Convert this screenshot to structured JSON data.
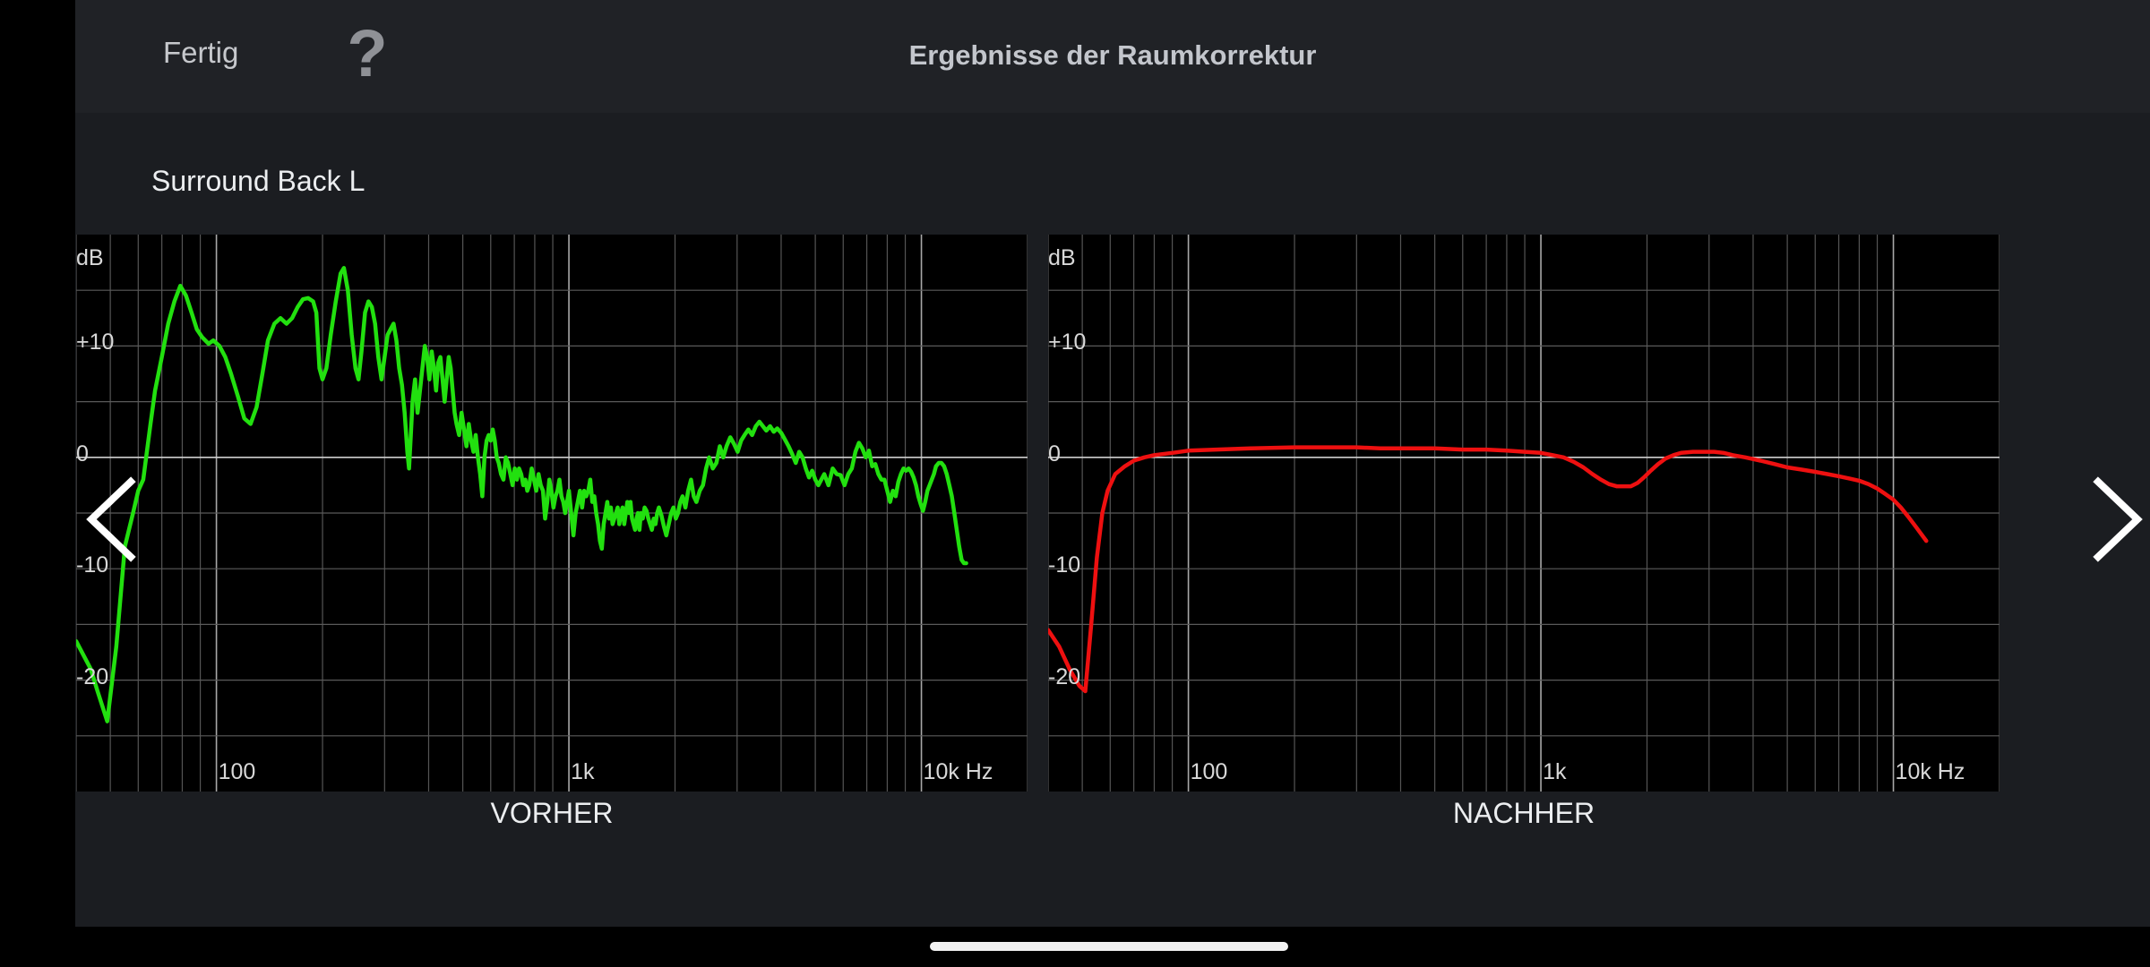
{
  "header": {
    "done_label": "Fertig",
    "help_label": "?",
    "title": "Ergebnisse der Raumkorrektur"
  },
  "speaker": "Surround Back L",
  "axis": {
    "unit_label": "dB",
    "y_ticks": [
      "+10",
      "0",
      "-10",
      "-20"
    ],
    "x_ticks": [
      "100",
      "1k",
      "10k Hz"
    ]
  },
  "colors": {
    "before_curve": "#22e00f",
    "after_curve": "#ee1010",
    "app_background": "#1b1d21",
    "header_background": "#202226"
  },
  "icons": {
    "prev": "chevron-left-icon",
    "next": "chevron-right-icon"
  },
  "chart_data": [
    {
      "type": "line",
      "title": "VORHER",
      "ylabel": "dB",
      "x_scale": "log",
      "xlim": [
        40,
        20000
      ],
      "ylim": [
        -30,
        20
      ],
      "grid": true,
      "points": [
        [
          40,
          -16.5
        ],
        [
          44,
          -19
        ],
        [
          46,
          -21
        ],
        [
          49,
          -23.7
        ],
        [
          52,
          -17
        ],
        [
          55,
          -8
        ],
        [
          58,
          -5
        ],
        [
          60,
          -3
        ],
        [
          62,
          -2
        ],
        [
          65,
          3
        ],
        [
          67,
          6
        ],
        [
          70,
          9
        ],
        [
          73,
          12
        ],
        [
          76,
          14
        ],
        [
          79,
          15.4
        ],
        [
          82,
          14.5
        ],
        [
          85,
          13
        ],
        [
          88,
          11.5
        ],
        [
          91,
          10.8
        ],
        [
          95,
          10.2
        ],
        [
          98,
          10.5
        ],
        [
          102,
          10
        ],
        [
          106,
          9
        ],
        [
          110,
          7.5
        ],
        [
          115,
          5.5
        ],
        [
          120,
          3.5
        ],
        [
          125,
          3
        ],
        [
          130,
          4.5
        ],
        [
          135,
          7.5
        ],
        [
          140,
          10.5
        ],
        [
          146,
          12
        ],
        [
          152,
          12.5
        ],
        [
          158,
          12
        ],
        [
          164,
          12.5
        ],
        [
          170,
          13.5
        ],
        [
          176,
          14.2
        ],
        [
          182,
          14.3
        ],
        [
          188,
          14
        ],
        [
          192,
          13
        ],
        [
          196,
          8
        ],
        [
          200,
          7
        ],
        [
          205,
          8
        ],
        [
          211,
          11
        ],
        [
          218,
          14
        ],
        [
          225,
          16.5
        ],
        [
          230,
          17
        ],
        [
          236,
          15
        ],
        [
          242,
          11
        ],
        [
          248,
          8
        ],
        [
          253,
          7
        ],
        [
          258,
          9.5
        ],
        [
          264,
          13
        ],
        [
          270,
          14
        ],
        [
          276,
          13.5
        ],
        [
          282,
          12
        ],
        [
          288,
          9
        ],
        [
          294,
          7
        ],
        [
          300,
          9
        ],
        [
          306,
          11
        ],
        [
          312,
          11.5
        ],
        [
          318,
          12
        ],
        [
          324,
          10.5
        ],
        [
          330,
          8
        ],
        [
          336,
          6.5
        ],
        [
          342,
          4
        ],
        [
          348,
          0.5
        ],
        [
          352,
          -1
        ],
        [
          356,
          2
        ],
        [
          360,
          5
        ],
        [
          366,
          7
        ],
        [
          372,
          4
        ],
        [
          378,
          6
        ],
        [
          384,
          8
        ],
        [
          390,
          10
        ],
        [
          396,
          9
        ],
        [
          402,
          7
        ],
        [
          408,
          9.5
        ],
        [
          414,
          8
        ],
        [
          420,
          6
        ],
        [
          426,
          8.5
        ],
        [
          432,
          9
        ],
        [
          438,
          7
        ],
        [
          444,
          5
        ],
        [
          450,
          7
        ],
        [
          456,
          9
        ],
        [
          462,
          8
        ],
        [
          468,
          6
        ],
        [
          474,
          4
        ],
        [
          480,
          3
        ],
        [
          488,
          2
        ],
        [
          496,
          4
        ],
        [
          504,
          2.5
        ],
        [
          512,
          1
        ],
        [
          520,
          3
        ],
        [
          528,
          1.5
        ],
        [
          536,
          0.5
        ],
        [
          544,
          2
        ],
        [
          552,
          0
        ],
        [
          560,
          -1.5
        ],
        [
          568,
          -3.5
        ],
        [
          576,
          0
        ],
        [
          584,
          1.5
        ],
        [
          592,
          2
        ],
        [
          600,
          1.5
        ],
        [
          608,
          2.5
        ],
        [
          616,
          1.5
        ],
        [
          624,
          0
        ],
        [
          632,
          -0.5
        ],
        [
          642,
          -1.5
        ],
        [
          652,
          -2
        ],
        [
          662,
          0
        ],
        [
          672,
          -0.5
        ],
        [
          682,
          -1.5
        ],
        [
          692,
          -2.5
        ],
        [
          702,
          -1
        ],
        [
          712,
          -2
        ],
        [
          722,
          -1
        ],
        [
          732,
          -1.5
        ],
        [
          742,
          -2.5
        ],
        [
          752,
          -2
        ],
        [
          762,
          -3
        ],
        [
          772,
          -2.5
        ],
        [
          784,
          -1
        ],
        [
          796,
          -2
        ],
        [
          808,
          -3
        ],
        [
          820,
          -1.5
        ],
        [
          832,
          -2.5
        ],
        [
          844,
          -3
        ],
        [
          856,
          -5.5
        ],
        [
          868,
          -4
        ],
        [
          880,
          -2
        ],
        [
          892,
          -3
        ],
        [
          904,
          -4.5
        ],
        [
          916,
          -3.5
        ],
        [
          928,
          -3
        ],
        [
          940,
          -2
        ],
        [
          952,
          -3.5
        ],
        [
          964,
          -4
        ],
        [
          976,
          -5
        ],
        [
          988,
          -4
        ],
        [
          1000,
          -3
        ],
        [
          1015,
          -5
        ],
        [
          1030,
          -7
        ],
        [
          1045,
          -5
        ],
        [
          1060,
          -4
        ],
        [
          1075,
          -3
        ],
        [
          1090,
          -4.5
        ],
        [
          1105,
          -3
        ],
        [
          1120,
          -3.5
        ],
        [
          1135,
          -3
        ],
        [
          1150,
          -2
        ],
        [
          1165,
          -4
        ],
        [
          1180,
          -3.5
        ],
        [
          1195,
          -5
        ],
        [
          1210,
          -6
        ],
        [
          1225,
          -7.5
        ],
        [
          1240,
          -8.2
        ],
        [
          1255,
          -6
        ],
        [
          1270,
          -5
        ],
        [
          1285,
          -4
        ],
        [
          1300,
          -5.5
        ],
        [
          1315,
          -4.5
        ],
        [
          1330,
          -6
        ],
        [
          1345,
          -5.5
        ],
        [
          1360,
          -5
        ],
        [
          1375,
          -4.5
        ],
        [
          1390,
          -6
        ],
        [
          1405,
          -5
        ],
        [
          1420,
          -4.5
        ],
        [
          1435,
          -6
        ],
        [
          1450,
          -5
        ],
        [
          1465,
          -4
        ],
        [
          1480,
          -5
        ],
        [
          1495,
          -4
        ],
        [
          1510,
          -5.5
        ],
        [
          1525,
          -6
        ],
        [
          1540,
          -6.5
        ],
        [
          1555,
          -5.5
        ],
        [
          1570,
          -5
        ],
        [
          1585,
          -6.5
        ],
        [
          1600,
          -5
        ],
        [
          1620,
          -5.5
        ],
        [
          1640,
          -4.5
        ],
        [
          1660,
          -4.8
        ],
        [
          1680,
          -5.5
        ],
        [
          1700,
          -6
        ],
        [
          1720,
          -6.5
        ],
        [
          1740,
          -5.5
        ],
        [
          1760,
          -6
        ],
        [
          1780,
          -5
        ],
        [
          1800,
          -4.5
        ],
        [
          1830,
          -5.2
        ],
        [
          1860,
          -6.2
        ],
        [
          1890,
          -7
        ],
        [
          1920,
          -6
        ],
        [
          1950,
          -5
        ],
        [
          1980,
          -4.5
        ],
        [
          2010,
          -5.5
        ],
        [
          2040,
          -5
        ],
        [
          2070,
          -4
        ],
        [
          2100,
          -3.5
        ],
        [
          2140,
          -4.5
        ],
        [
          2180,
          -3
        ],
        [
          2220,
          -2
        ],
        [
          2260,
          -3.5
        ],
        [
          2300,
          -4
        ],
        [
          2350,
          -3
        ],
        [
          2400,
          -2.5
        ],
        [
          2450,
          -1
        ],
        [
          2500,
          0
        ],
        [
          2560,
          -1
        ],
        [
          2620,
          -0.5
        ],
        [
          2680,
          1
        ],
        [
          2740,
          0
        ],
        [
          2800,
          1
        ],
        [
          2870,
          1.8
        ],
        [
          2940,
          1.2
        ],
        [
          3010,
          0.5
        ],
        [
          3080,
          1.5
        ],
        [
          3150,
          2
        ],
        [
          3230,
          2.5
        ],
        [
          3310,
          2
        ],
        [
          3390,
          2.8
        ],
        [
          3470,
          3.2
        ],
        [
          3550,
          2.8
        ],
        [
          3630,
          2.4
        ],
        [
          3720,
          2.8
        ],
        [
          3810,
          2.3
        ],
        [
          3900,
          2.6
        ],
        [
          4000,
          2.2
        ],
        [
          4100,
          1.6
        ],
        [
          4200,
          1
        ],
        [
          4300,
          0.3
        ],
        [
          4400,
          -0.5
        ],
        [
          4500,
          0.5
        ],
        [
          4600,
          0
        ],
        [
          4700,
          -1
        ],
        [
          4800,
          -1.8
        ],
        [
          4900,
          -1.2
        ],
        [
          5000,
          -2
        ],
        [
          5100,
          -2.5
        ],
        [
          5200,
          -2
        ],
        [
          5300,
          -1.5
        ],
        [
          5450,
          -2.5
        ],
        [
          5600,
          -1
        ],
        [
          5750,
          -1.5
        ],
        [
          5900,
          -1.6
        ],
        [
          6050,
          -2.5
        ],
        [
          6200,
          -1.5
        ],
        [
          6350,
          -1
        ],
        [
          6500,
          0.5
        ],
        [
          6650,
          1.3
        ],
        [
          6800,
          0.8
        ],
        [
          6950,
          0
        ],
        [
          7100,
          0.6
        ],
        [
          7250,
          -0.8
        ],
        [
          7400,
          -0.6
        ],
        [
          7550,
          -1.5
        ],
        [
          7700,
          -2
        ],
        [
          7850,
          -2
        ],
        [
          8000,
          -3
        ],
        [
          8150,
          -4
        ],
        [
          8300,
          -3
        ],
        [
          8450,
          -3.5
        ],
        [
          8600,
          -2.2
        ],
        [
          8750,
          -1.5
        ],
        [
          8900,
          -1
        ],
        [
          9050,
          -1.2
        ],
        [
          9200,
          -1
        ],
        [
          9350,
          -1.3
        ],
        [
          9500,
          -1.8
        ],
        [
          9650,
          -2.5
        ],
        [
          9800,
          -3.5
        ],
        [
          9950,
          -4.2
        ],
        [
          10100,
          -4.8
        ],
        [
          10250,
          -4
        ],
        [
          10400,
          -3
        ],
        [
          10550,
          -2.5
        ],
        [
          10700,
          -2
        ],
        [
          10850,
          -1.5
        ],
        [
          11000,
          -0.8
        ],
        [
          11200,
          -0.5
        ],
        [
          11400,
          -0.5
        ],
        [
          11600,
          -0.8
        ],
        [
          11800,
          -1.5
        ],
        [
          12000,
          -2.5
        ],
        [
          12200,
          -3.5
        ],
        [
          12400,
          -5
        ],
        [
          12600,
          -6.5
        ],
        [
          12800,
          -8
        ],
        [
          13000,
          -9.2
        ],
        [
          13200,
          -9.5
        ],
        [
          13400,
          -9.5
        ]
      ]
    },
    {
      "type": "line",
      "title": "NACHHER",
      "ylabel": "dB",
      "x_scale": "log",
      "xlim": [
        40,
        20000
      ],
      "ylim": [
        -30,
        20
      ],
      "grid": true,
      "points": [
        [
          40,
          -15.5
        ],
        [
          43,
          -17
        ],
        [
          46,
          -19
        ],
        [
          49,
          -20.5
        ],
        [
          51,
          -21
        ],
        [
          53,
          -15
        ],
        [
          55,
          -9
        ],
        [
          57,
          -5
        ],
        [
          59,
          -3
        ],
        [
          62,
          -1.5
        ],
        [
          66,
          -0.8
        ],
        [
          70,
          -0.3
        ],
        [
          75,
          0
        ],
        [
          80,
          0.2
        ],
        [
          90,
          0.4
        ],
        [
          100,
          0.6
        ],
        [
          120,
          0.7
        ],
        [
          150,
          0.8
        ],
        [
          200,
          0.9
        ],
        [
          250,
          0.9
        ],
        [
          300,
          0.9
        ],
        [
          350,
          0.8
        ],
        [
          400,
          0.8
        ],
        [
          500,
          0.8
        ],
        [
          600,
          0.7
        ],
        [
          700,
          0.7
        ],
        [
          800,
          0.6
        ],
        [
          900,
          0.5
        ],
        [
          1000,
          0.4
        ],
        [
          1080,
          0.2
        ],
        [
          1160,
          0
        ],
        [
          1240,
          -0.4
        ],
        [
          1320,
          -0.9
        ],
        [
          1400,
          -1.5
        ],
        [
          1480,
          -2
        ],
        [
          1560,
          -2.4
        ],
        [
          1640,
          -2.6
        ],
        [
          1720,
          -2.6
        ],
        [
          1800,
          -2.6
        ],
        [
          1880,
          -2.3
        ],
        [
          1960,
          -1.8
        ],
        [
          2050,
          -1.2
        ],
        [
          2150,
          -0.6
        ],
        [
          2260,
          -0.1
        ],
        [
          2380,
          0.2
        ],
        [
          2500,
          0.4
        ],
        [
          2700,
          0.5
        ],
        [
          2900,
          0.5
        ],
        [
          3100,
          0.5
        ],
        [
          3300,
          0.4
        ],
        [
          3500,
          0.2
        ],
        [
          3800,
          0
        ],
        [
          4200,
          -0.3
        ],
        [
          4600,
          -0.6
        ],
        [
          5000,
          -0.9
        ],
        [
          5500,
          -1.1
        ],
        [
          6000,
          -1.3
        ],
        [
          6500,
          -1.5
        ],
        [
          7000,
          -1.7
        ],
        [
          7500,
          -1.9
        ],
        [
          8000,
          -2.1
        ],
        [
          8500,
          -2.4
        ],
        [
          9000,
          -2.8
        ],
        [
          9500,
          -3.3
        ],
        [
          10000,
          -3.8
        ],
        [
          10500,
          -4.5
        ],
        [
          11000,
          -5.3
        ],
        [
          11500,
          -6.1
        ],
        [
          12000,
          -6.9
        ],
        [
          12400,
          -7.5
        ]
      ]
    }
  ]
}
